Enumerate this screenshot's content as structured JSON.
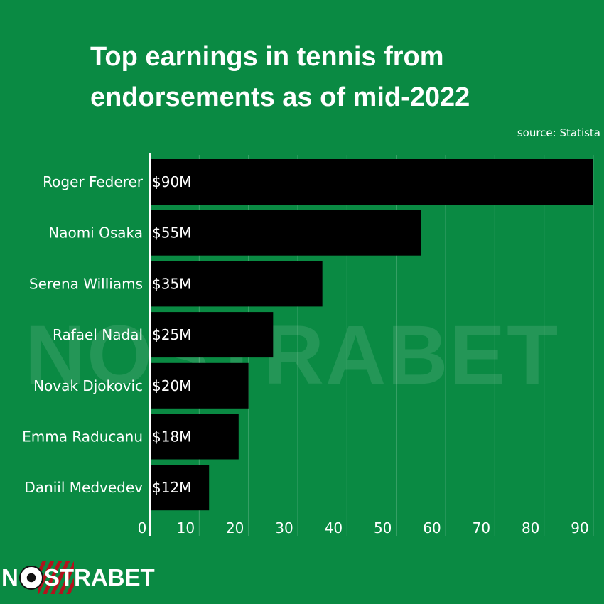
{
  "title": "Top earnings in tennis from endorsements as of mid-2022",
  "source": "source: Statista",
  "watermark": "NOSTRABET",
  "brand": {
    "pre": "N",
    "post": "STRABET"
  },
  "colors": {
    "background": "#0a8a43",
    "bar": "#000000",
    "text": "#ffffff",
    "grid": "rgba(255,255,255,0.22)",
    "stripe": "#b3121d"
  },
  "chart_data": {
    "type": "bar",
    "orientation": "horizontal",
    "categories": [
      "Roger Federer",
      "Naomi Osaka",
      "Serena Williams",
      "Rafael Nadal",
      "Novak Djokovic",
      "Emma Raducanu",
      "Daniil Medvedev"
    ],
    "values": [
      90,
      55,
      35,
      25,
      20,
      18,
      12
    ],
    "data_labels": [
      "$90M",
      "$55M",
      "$35M",
      "$25M",
      "$20M",
      "$18M",
      "$12M"
    ],
    "x_ticks": [
      0,
      10,
      20,
      30,
      40,
      50,
      60,
      70,
      80,
      90
    ],
    "xlim": [
      0,
      90
    ],
    "grid": true,
    "xlabel": "",
    "ylabel": ""
  }
}
